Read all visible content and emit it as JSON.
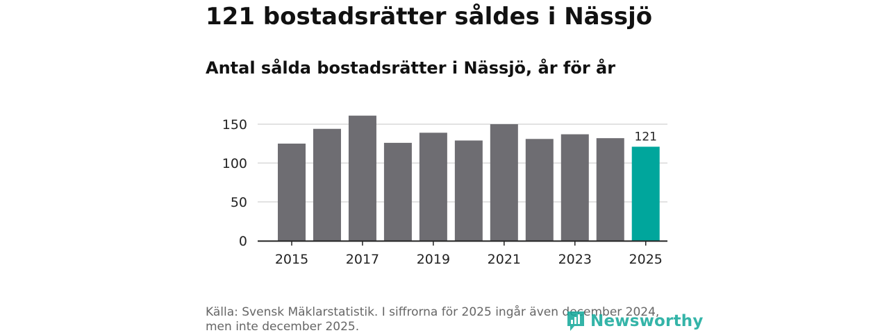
{
  "headline": "121 bostadsrätter såldes i Nässjö",
  "colors": {
    "bar_default": "#6e6d72",
    "bar_highlight": "#00a69c",
    "gridline": "#d9d9d9",
    "axis": "#222222",
    "brand": "#11a89a"
  },
  "chart_data": {
    "type": "bar",
    "title": "Antal sålda bostadsrätter i Nässjö, år för år",
    "xlabel": "",
    "ylabel": "",
    "categories": [
      "2015",
      "2016",
      "2017",
      "2018",
      "2019",
      "2020",
      "2021",
      "2022",
      "2023",
      "2024",
      "2025"
    ],
    "values": [
      125,
      144,
      161,
      126,
      139,
      129,
      150,
      131,
      137,
      132,
      121
    ],
    "highlight_index": 10,
    "data_labels": [
      {
        "category": "2025",
        "text": "121"
      }
    ],
    "x_tick_labels": [
      "2015",
      "2017",
      "2019",
      "2021",
      "2023",
      "2025"
    ],
    "y_ticks": [
      0,
      50,
      100,
      150
    ],
    "ylim": [
      0,
      165
    ],
    "grid": true,
    "legend": "none"
  },
  "footer": {
    "source": "Källa: Svensk Mäklarstatistik. I siffrorna för 2025 ingår även december 2024, men inte december 2025.",
    "brand_name": "Newsworthy",
    "brand_icon": "newsworthy-logo-icon"
  }
}
